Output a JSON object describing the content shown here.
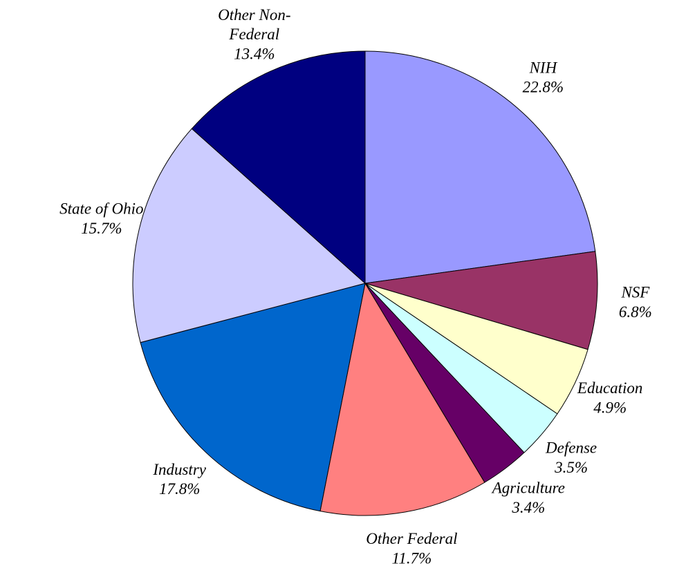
{
  "chart_data": {
    "type": "pie",
    "categories": [
      "NIH",
      "NSF",
      "Education",
      "Defense",
      "Agriculture",
      "Other Federal",
      "Industry",
      "State of Ohio",
      "Other Non-Federal"
    ],
    "values": [
      22.8,
      6.8,
      4.9,
      3.5,
      3.4,
      11.7,
      17.8,
      15.7,
      13.4
    ],
    "value_labels": [
      "22.8%",
      "6.8%",
      "4.9%",
      "3.5%",
      "3.4%",
      "11.7%",
      "17.8%",
      "15.7%",
      "13.4%"
    ],
    "colors": [
      "#9999ff",
      "#993366",
      "#ffffcc",
      "#ccffff",
      "#660066",
      "#ff8080",
      "#0066cc",
      "#ccccff",
      "#000080"
    ]
  }
}
